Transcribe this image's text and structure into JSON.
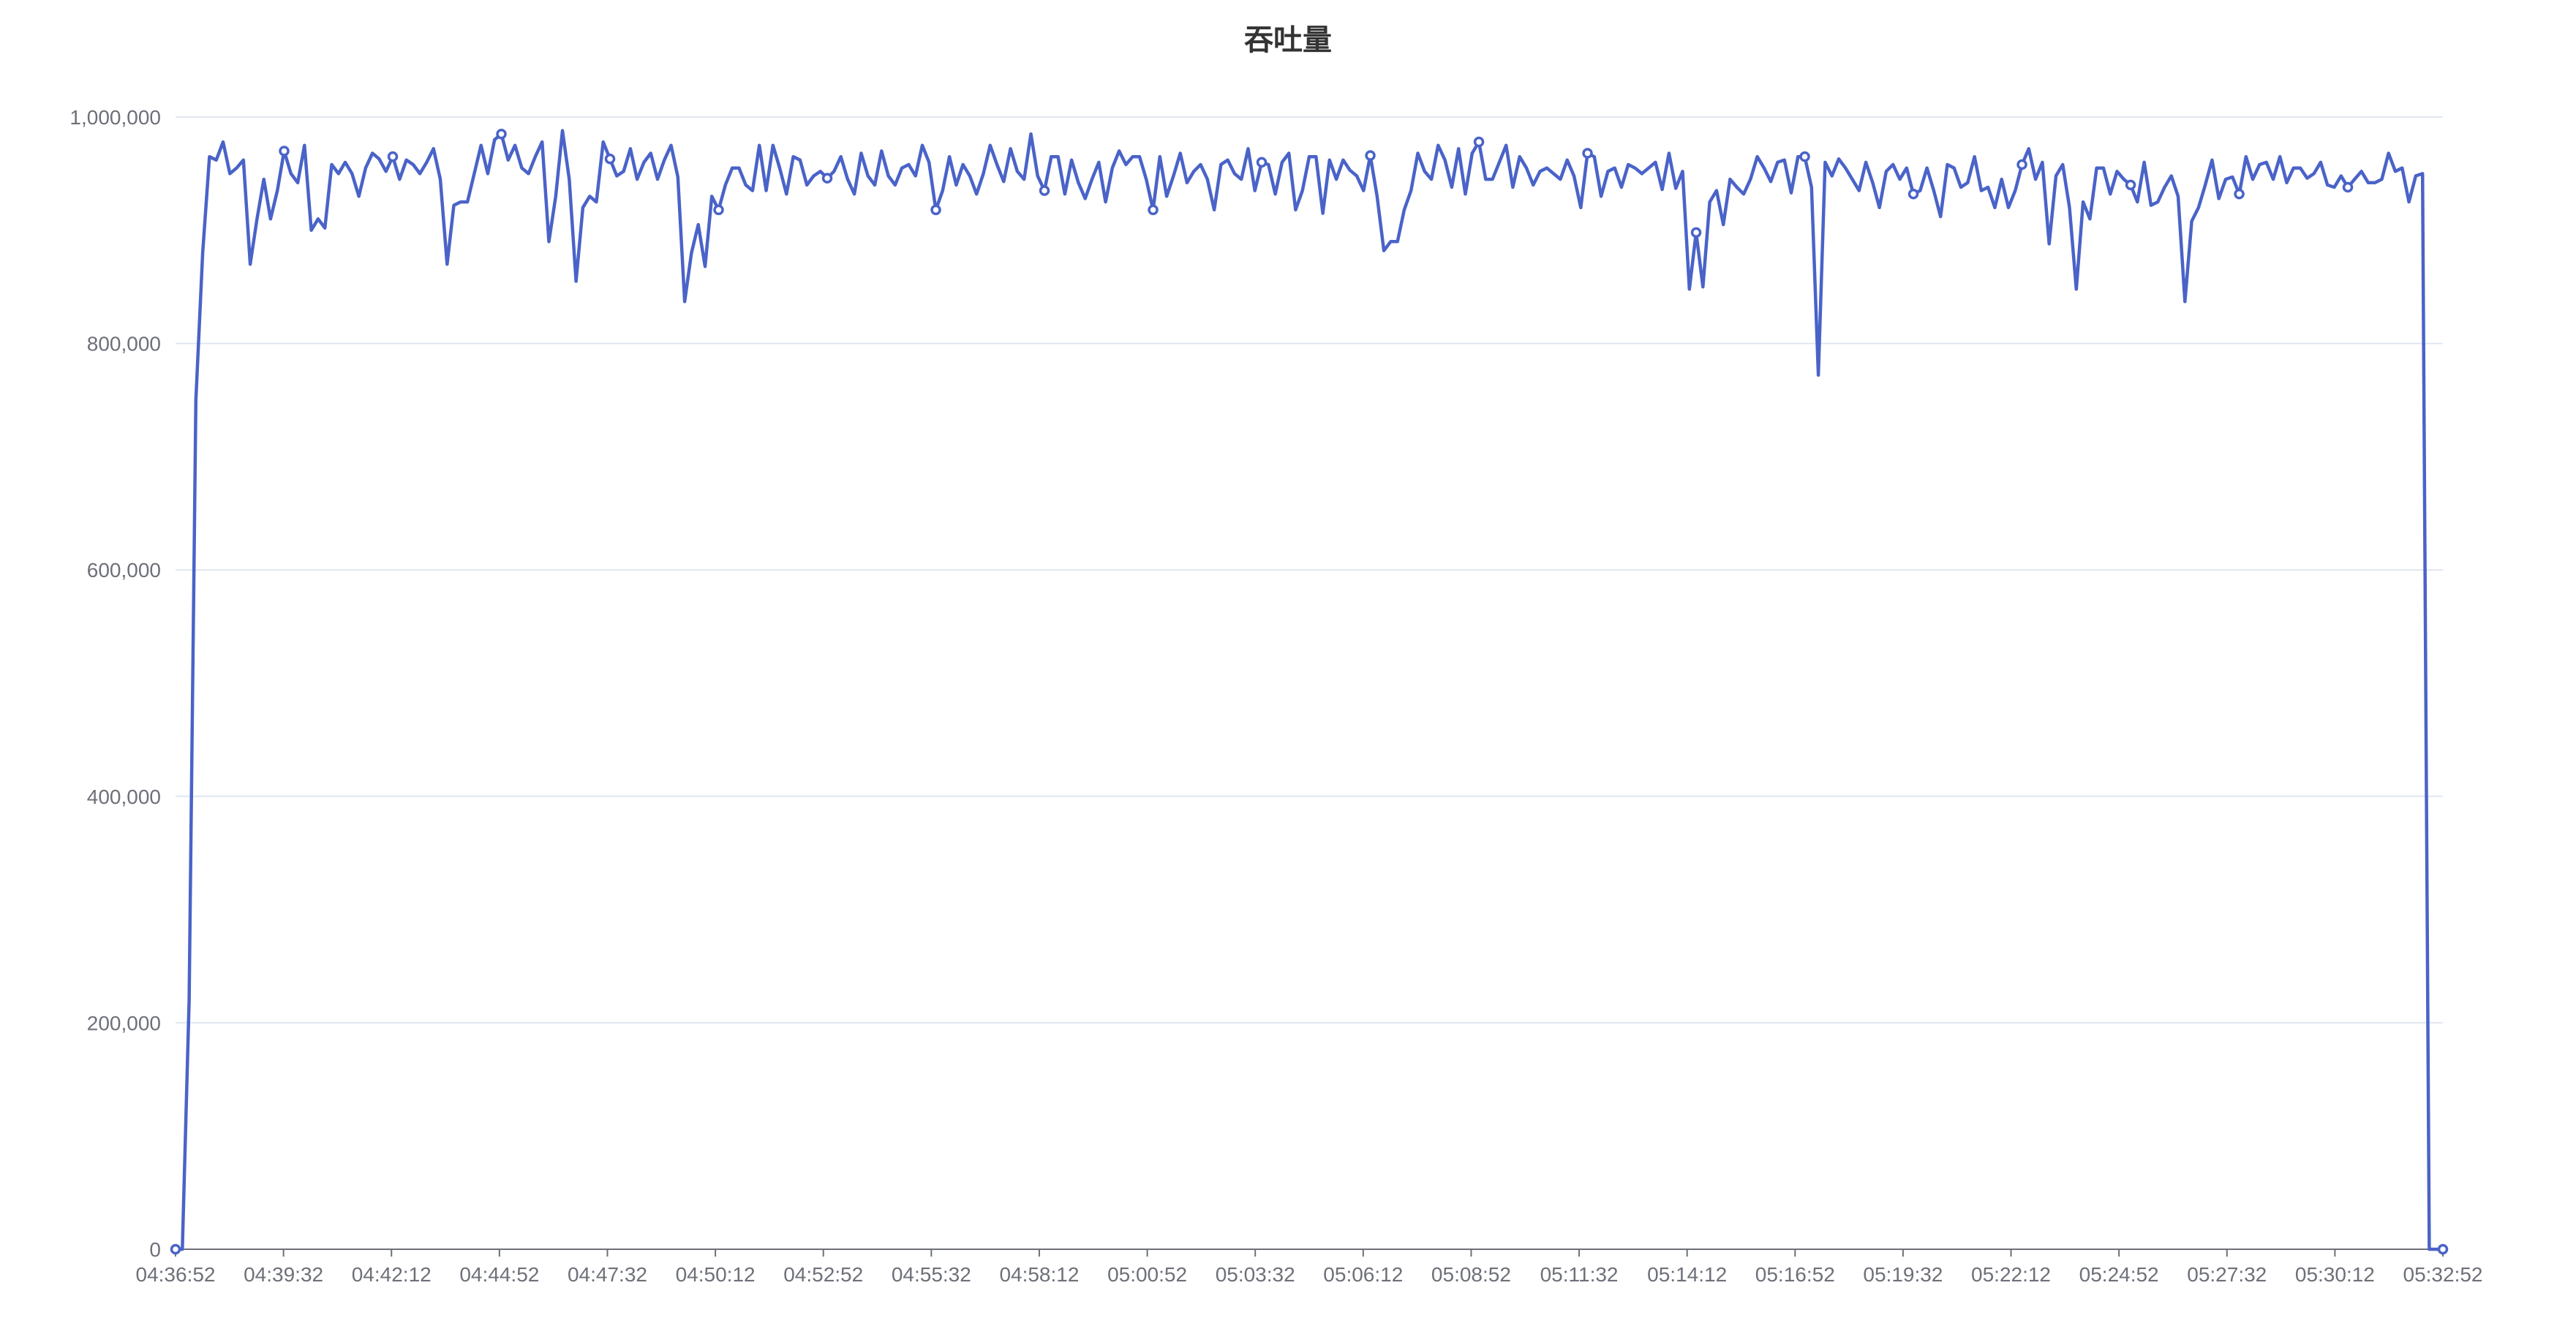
{
  "colors": {
    "series": "#4a63c8",
    "grid": "#e0e6f1",
    "axis": "#6e7079",
    "title": "#333333",
    "background": "#ffffff"
  },
  "chart_data": {
    "type": "line",
    "title": "吞吐量",
    "xlabel": "",
    "ylabel": "",
    "grid": true,
    "legend": "none",
    "ylim": [
      0,
      1000000
    ],
    "y_ticks": [
      0,
      200000,
      400000,
      600000,
      800000,
      1000000
    ],
    "y_tick_labels": [
      "0",
      "200,000",
      "400,000",
      "600,000",
      "800,000",
      "1,000,000"
    ],
    "x_tick_labels": [
      "04:36:52",
      "04:39:32",
      "04:42:12",
      "04:44:52",
      "04:47:32",
      "04:50:12",
      "04:52:52",
      "04:55:32",
      "04:58:12",
      "05:00:52",
      "05:03:32",
      "05:06:12",
      "05:08:52",
      "05:11:32",
      "05:14:12",
      "05:16:52",
      "05:19:32",
      "05:22:12",
      "05:24:52",
      "05:27:32",
      "05:30:12",
      "05:32:52"
    ],
    "x_start": "04:36:52",
    "x_end": "05:32:52",
    "series": [
      {
        "values": [
          0,
          0,
          220000,
          750000,
          880000,
          965000,
          962000,
          978000,
          950000,
          955000,
          962000,
          870000,
          910000,
          945000,
          910000,
          935000,
          970000,
          950000,
          942000,
          975000,
          900000,
          910000,
          902000,
          958000,
          950000,
          960000,
          950000,
          930000,
          955000,
          968000,
          963000,
          952000,
          965000,
          945000,
          962000,
          958000,
          950000,
          960000,
          972000,
          945000,
          870000,
          922000,
          925000,
          925000,
          950000,
          975000,
          950000,
          980000,
          985000,
          962000,
          975000,
          955000,
          950000,
          965000,
          978000,
          890000,
          930000,
          988000,
          945000,
          855000,
          920000,
          930000,
          925000,
          978000,
          963000,
          948000,
          952000,
          972000,
          945000,
          960000,
          968000,
          945000,
          962000,
          975000,
          947000,
          837000,
          880000,
          905000,
          868000,
          930000,
          918000,
          940000,
          955000,
          955000,
          940000,
          935000,
          975000,
          935000,
          975000,
          955000,
          932000,
          965000,
          962000,
          940000,
          948000,
          952000,
          946000,
          952000,
          965000,
          945000,
          932000,
          968000,
          948000,
          940000,
          970000,
          948000,
          940000,
          955000,
          958000,
          948000,
          975000,
          960000,
          918000,
          935000,
          965000,
          940000,
          958000,
          948000,
          932000,
          950000,
          975000,
          958000,
          943000,
          972000,
          952000,
          945000,
          985000,
          948000,
          935000,
          965000,
          965000,
          932000,
          962000,
          942000,
          928000,
          945000,
          960000,
          925000,
          955000,
          970000,
          958000,
          965000,
          965000,
          945000,
          918000,
          965000,
          930000,
          948000,
          968000,
          942000,
          952000,
          958000,
          945000,
          918000,
          958000,
          962000,
          950000,
          945000,
          972000,
          935000,
          960000,
          958000,
          932000,
          960000,
          968000,
          918000,
          935000,
          965000,
          965000,
          915000,
          962000,
          945000,
          962000,
          953000,
          948000,
          935000,
          966000,
          930000,
          882000,
          890000,
          890000,
          918000,
          935000,
          968000,
          952000,
          945000,
          975000,
          962000,
          938000,
          972000,
          932000,
          968000,
          978000,
          945000,
          945000,
          960000,
          975000,
          938000,
          965000,
          955000,
          940000,
          952000,
          955000,
          950000,
          945000,
          962000,
          948000,
          920000,
          968000,
          965000,
          930000,
          952000,
          955000,
          938000,
          958000,
          955000,
          950000,
          955000,
          960000,
          936000,
          968000,
          937000,
          952000,
          848000,
          898000,
          850000,
          925000,
          935000,
          905000,
          945000,
          938000,
          932000,
          945000,
          965000,
          955000,
          943000,
          960000,
          962000,
          933000,
          965000,
          965000,
          938000,
          772000,
          960000,
          948000,
          963000,
          955000,
          945000,
          935000,
          960000,
          942000,
          920000,
          952000,
          958000,
          945000,
          955000,
          932000,
          935000,
          955000,
          935000,
          912000,
          958000,
          955000,
          938000,
          942000,
          965000,
          935000,
          938000,
          920000,
          945000,
          920000,
          935000,
          958000,
          972000,
          945000,
          960000,
          888000,
          948000,
          958000,
          920000,
          848000,
          925000,
          910000,
          955000,
          955000,
          932000,
          952000,
          945000,
          940000,
          925000,
          960000,
          922000,
          925000,
          938000,
          948000,
          930000,
          837000,
          908000,
          920000,
          940000,
          962000,
          928000,
          945000,
          947000,
          932000,
          965000,
          945000,
          958000,
          960000,
          945000,
          965000,
          942000,
          955000,
          955000,
          946000,
          950000,
          960000,
          940000,
          938000,
          948000,
          938000,
          945000,
          952000,
          942000,
          942000,
          945000,
          968000,
          952000,
          955000,
          925000,
          948000,
          950000,
          0,
          0,
          0
        ]
      }
    ]
  }
}
